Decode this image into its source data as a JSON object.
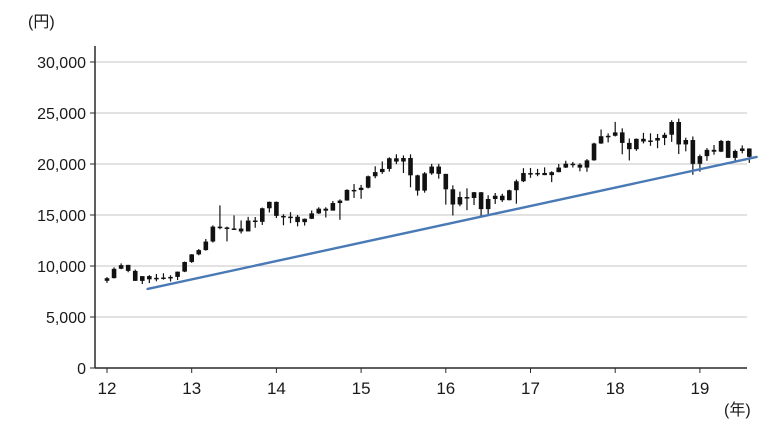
{
  "chart_data": {
    "type": "candlestick",
    "title": "",
    "y_axis": {
      "unit_label": "(円)",
      "ticks": [
        "30,000",
        "25,000",
        "20,000",
        "15,000",
        "10,000",
        "5,000",
        "0"
      ],
      "tick_values": [
        30000,
        25000,
        20000,
        15000,
        10000,
        5000,
        0
      ],
      "min": 0,
      "max": 30000,
      "grid": true
    },
    "x_axis": {
      "unit_label": "(年)",
      "ticks": [
        "12",
        "13",
        "14",
        "15",
        "16",
        "17",
        "18",
        "19"
      ],
      "start_year": 2012
    },
    "candle_format": [
      "month",
      "open",
      "high",
      "low",
      "close"
    ],
    "candles": [
      [
        "2012-01",
        8550,
        8911,
        8350,
        8803
      ],
      [
        "2012-02",
        8810,
        9866,
        8790,
        9723
      ],
      [
        "2012-03",
        9730,
        10255,
        9690,
        10084
      ],
      [
        "2012-04",
        10110,
        10110,
        9388,
        9521
      ],
      [
        "2012-05",
        9520,
        9650,
        8542,
        8543
      ],
      [
        "2012-06",
        8540,
        9007,
        8239,
        9007
      ],
      [
        "2012-07",
        9010,
        9104,
        8328,
        8695
      ],
      [
        "2012-08",
        8700,
        9222,
        8500,
        8840
      ],
      [
        "2012-09",
        8840,
        9288,
        8660,
        8870
      ],
      [
        "2012-10",
        8870,
        9092,
        8488,
        8928
      ],
      [
        "2012-11",
        8930,
        9460,
        8620,
        9446
      ],
      [
        "2012-12",
        9450,
        10433,
        9400,
        10395
      ],
      [
        "2013-01",
        10400,
        11165,
        10300,
        11139
      ],
      [
        "2013-02",
        11140,
        11662,
        11050,
        11559
      ],
      [
        "2013-03",
        11560,
        12650,
        11500,
        12398
      ],
      [
        "2013-04",
        12400,
        13983,
        12300,
        13861
      ],
      [
        "2013-05",
        13860,
        15943,
        13600,
        13775
      ],
      [
        "2013-06",
        13780,
        13860,
        12415,
        13677
      ],
      [
        "2013-07",
        13680,
        14953,
        13610,
        13668
      ],
      [
        "2013-08",
        13670,
        14466,
        13188,
        13389
      ],
      [
        "2013-09",
        13390,
        14817,
        13390,
        14456
      ],
      [
        "2013-10",
        14460,
        14799,
        13749,
        14328
      ],
      [
        "2013-11",
        14330,
        15727,
        14026,
        15662
      ],
      [
        "2013-12",
        15660,
        16320,
        15250,
        16291
      ],
      [
        "2014-01",
        16290,
        16320,
        14699,
        14914
      ],
      [
        "2014-02",
        14910,
        15080,
        13995,
        14841
      ],
      [
        "2014-03",
        14840,
        15274,
        14203,
        14828
      ],
      [
        "2014-04",
        14830,
        15004,
        13885,
        14304
      ],
      [
        "2014-05",
        14300,
        14655,
        13964,
        14632
      ],
      [
        "2014-06",
        14630,
        15442,
        14601,
        15162
      ],
      [
        "2014-07",
        15160,
        15759,
        15101,
        15621
      ],
      [
        "2014-08",
        15620,
        15760,
        14753,
        15425
      ],
      [
        "2014-09",
        15430,
        16374,
        15430,
        16174
      ],
      [
        "2014-10",
        16170,
        16533,
        14529,
        16414
      ],
      [
        "2014-11",
        16420,
        17520,
        16400,
        17460
      ],
      [
        "2014-12",
        17460,
        18030,
        16672,
        17451
      ],
      [
        "2015-01",
        17450,
        17950,
        16592,
        17674
      ],
      [
        "2015-02",
        17680,
        18865,
        17606,
        18798
      ],
      [
        "2015-03",
        18800,
        19778,
        18604,
        19207
      ],
      [
        "2015-04",
        19210,
        20252,
        19034,
        19520
      ],
      [
        "2015-05",
        19520,
        20655,
        19257,
        20563
      ],
      [
        "2015-06",
        20560,
        20952,
        19990,
        20236
      ],
      [
        "2015-07",
        20240,
        20841,
        19116,
        20585
      ],
      [
        "2015-08",
        20590,
        20946,
        17714,
        18890
      ],
      [
        "2015-09",
        18890,
        18951,
        16901,
        17388
      ],
      [
        "2015-10",
        17390,
        19202,
        17190,
        19083
      ],
      [
        "2015-11",
        19080,
        20012,
        18936,
        19747
      ],
      [
        "2015-12",
        19750,
        20012,
        18562,
        19034
      ],
      [
        "2016-01",
        19030,
        19030,
        16017,
        17518
      ],
      [
        "2016-02",
        17520,
        17905,
        14953,
        16027
      ],
      [
        "2016-03",
        16030,
        17291,
        15857,
        16759
      ],
      [
        "2016-04",
        16760,
        17613,
        15471,
        16666
      ],
      [
        "2016-05",
        16670,
        17251,
        15975,
        17235
      ],
      [
        "2016-06",
        17230,
        17251,
        14864,
        15576
      ],
      [
        "2016-07",
        15580,
        16938,
        15107,
        16569
      ],
      [
        "2016-08",
        16570,
        17156,
        16083,
        16887
      ],
      [
        "2016-09",
        16890,
        17081,
        16285,
        16450
      ],
      [
        "2016-10",
        16450,
        17482,
        16436,
        17425
      ],
      [
        "2016-11",
        17430,
        18476,
        16111,
        18308
      ],
      [
        "2016-12",
        18310,
        19592,
        18224,
        19114
      ],
      [
        "2017-01",
        19110,
        19615,
        18650,
        19041
      ],
      [
        "2017-02",
        19040,
        19519,
        18805,
        19119
      ],
      [
        "2017-03",
        19120,
        19668,
        18909,
        18909
      ],
      [
        "2017-04",
        18910,
        19289,
        18224,
        19197
      ],
      [
        "2017-05",
        19200,
        19999,
        19197,
        19651
      ],
      [
        "2017-06",
        19650,
        20318,
        19610,
        20033
      ],
      [
        "2017-07",
        20030,
        20200,
        19655,
        19925
      ],
      [
        "2017-08",
        19930,
        20080,
        19280,
        19646
      ],
      [
        "2017-09",
        19650,
        20481,
        19240,
        20356
      ],
      [
        "2017-10",
        20360,
        22087,
        20320,
        22012
      ],
      [
        "2017-11",
        22010,
        23382,
        21972,
        22725
      ],
      [
        "2017-12",
        22730,
        23000,
        22119,
        22765
      ],
      [
        "2018-01",
        22770,
        24129,
        22700,
        23098
      ],
      [
        "2018-02",
        23100,
        23498,
        20950,
        22068
      ],
      [
        "2018-03",
        22070,
        22502,
        20347,
        21454
      ],
      [
        "2018-04",
        21450,
        22500,
        21300,
        22468
      ],
      [
        "2018-05",
        22470,
        23050,
        22016,
        22202
      ],
      [
        "2018-06",
        22200,
        23011,
        21785,
        22305
      ],
      [
        "2018-07",
        22300,
        22949,
        21547,
        22554
      ],
      [
        "2018-08",
        22550,
        23070,
        21851,
        22865
      ],
      [
        "2018-09",
        22870,
        24286,
        22172,
        24120
      ],
      [
        "2018-10",
        24120,
        24448,
        20971,
        21920
      ],
      [
        "2018-11",
        21920,
        22583,
        21243,
        22351
      ],
      [
        "2018-12",
        22350,
        22698,
        18949,
        20015
      ],
      [
        "2019-01",
        20020,
        20927,
        19241,
        20773
      ],
      [
        "2019-02",
        20770,
        21556,
        20315,
        21385
      ],
      [
        "2019-03",
        21390,
        21860,
        20911,
        21206
      ],
      [
        "2019-04",
        21210,
        22362,
        21169,
        22259
      ],
      [
        "2019-05",
        22260,
        22308,
        20601,
        20601
      ],
      [
        "2019-06",
        20600,
        21407,
        20289,
        21276
      ],
      [
        "2019-07",
        21280,
        21823,
        21046,
        21522
      ],
      [
        "2019-08",
        21520,
        21540,
        20110,
        20704
      ]
    ],
    "trendline": {
      "start": {
        "year": 2012.48,
        "value": 7750
      },
      "end": {
        "year": 2019.67,
        "value": 20690
      }
    },
    "colors": {
      "candle": "#111111",
      "trendline": "#4a7ab5",
      "grid": "#c4c4c4",
      "axis": "#2a2a2a",
      "tick_text": "#1a1a1a"
    },
    "legend": null
  }
}
